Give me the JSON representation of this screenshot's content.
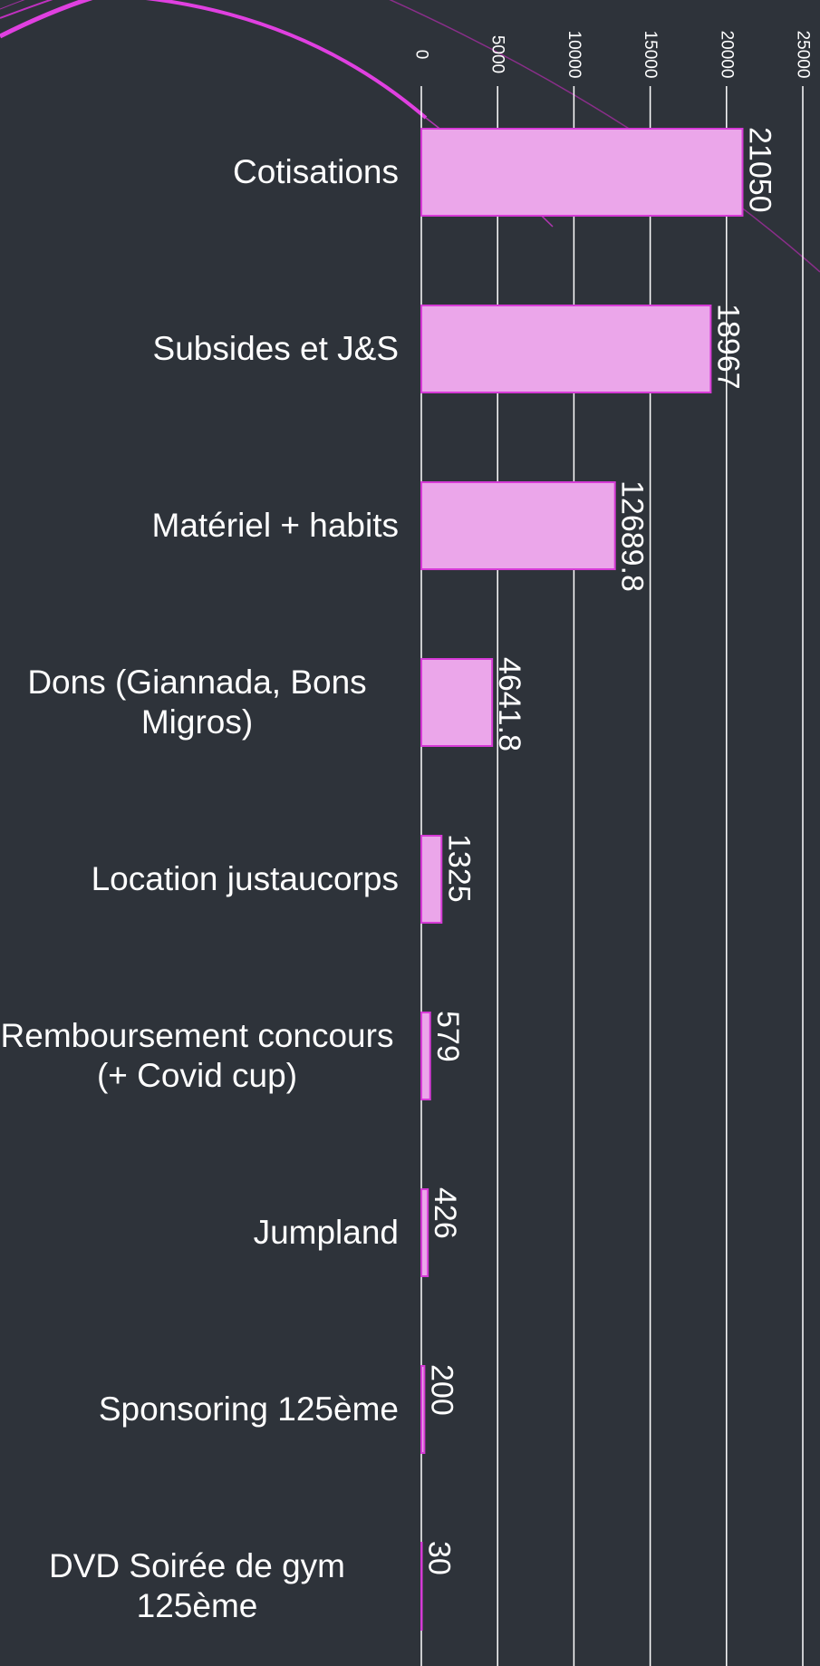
{
  "chart_data": {
    "type": "bar",
    "orientation": "horizontal",
    "categories": [
      "Cotisations",
      "Subsides et J&S",
      "Matériel + habits",
      "Dons (Giannada, Bons Migros)",
      "Location justaucorps",
      "Remboursement concours (+ Covid cup)",
      "Jumpland",
      "Sponsoring 125ème",
      "DVD Soirée de gym 125ème"
    ],
    "values": [
      21050,
      18967,
      12689.8,
      4641.8,
      1325,
      579,
      426,
      200,
      30
    ],
    "color": "#eba6ea",
    "edge_color": "#d63ad6",
    "xlim": [
      0,
      25000
    ],
    "xticks": [
      0,
      5000,
      10000,
      15000,
      20000,
      25000
    ],
    "grid": true
  }
}
